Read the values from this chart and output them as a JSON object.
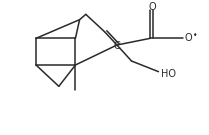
{
  "bg_color": "#ffffff",
  "line_color": "#2a2a2a",
  "figsize": [
    2.09,
    1.35
  ],
  "dpi": 100,
  "xlim": [
    0,
    1.0
  ],
  "ylim": [
    0,
    1.0
  ]
}
